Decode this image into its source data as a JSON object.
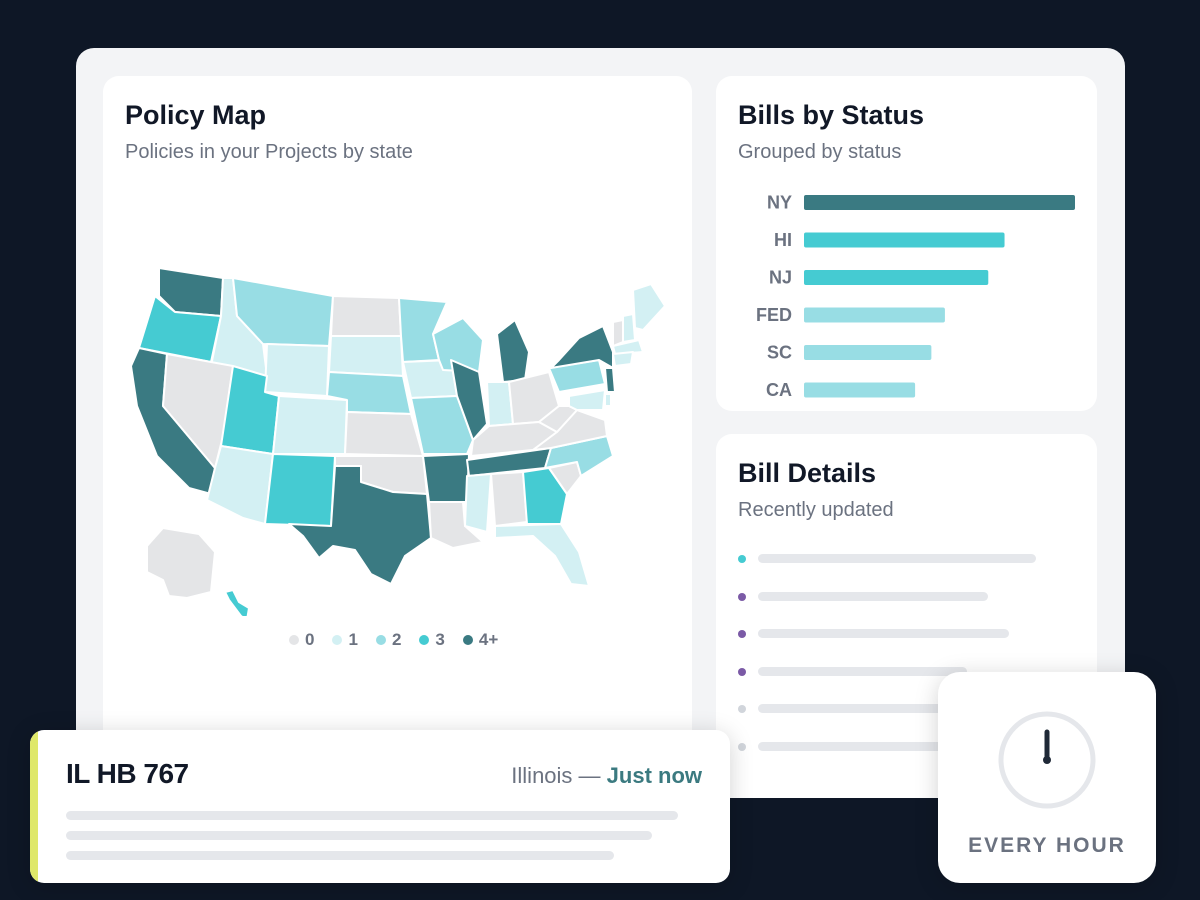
{
  "colors": {
    "level_0": "#e4e5e7",
    "level_1": "#d3f0f3",
    "level_2": "#98dde4",
    "level_3": "#45cbd2",
    "level_4": "#3a7a82",
    "accent_purple": "#7b5aa6",
    "accent_teal": "#45cbd2",
    "accent_gray": "#d1d5db",
    "highlight_yellow": "#dfe86a"
  },
  "policy_map": {
    "title": "Policy Map",
    "subtitle": "Policies in your Projects by state",
    "legend": [
      {
        "label": "0",
        "color": "#e4e5e7"
      },
      {
        "label": "1",
        "color": "#d3f0f3"
      },
      {
        "label": "2",
        "color": "#98dde4"
      },
      {
        "label": "3",
        "color": "#45cbd2"
      },
      {
        "label": "4+",
        "color": "#3a7a82"
      }
    ],
    "state_levels": {
      "WA": 4,
      "OR": 3,
      "CA": 4,
      "ID": 1,
      "NV": 0,
      "MT": 2,
      "WY": 1,
      "UT": 3,
      "AZ": 1,
      "CO": 1,
      "NM": 3,
      "ND": 0,
      "SD": 1,
      "NE": 2,
      "KS": 0,
      "OK": 0,
      "TX": 4,
      "MN": 2,
      "IA": 1,
      "MO": 2,
      "AR": 4,
      "LA": 0,
      "WI": 2,
      "IL": 4,
      "MI": 4,
      "IN": 1,
      "OH": 0,
      "KY": 0,
      "TN": 4,
      "MS": 1,
      "AL": 0,
      "GA": 3,
      "FL": 1,
      "SC": 0,
      "NC": 2,
      "VA": 0,
      "WV": 0,
      "PA": 2,
      "NY": 4,
      "ME": 1,
      "VT": 0,
      "NH": 1,
      "MA": 1,
      "CT": 1,
      "NJ": 4,
      "DE": 1,
      "MD": 1,
      "AK": 0,
      "HI": 3
    }
  },
  "bills_by_status": {
    "title": "Bills by Status",
    "subtitle": "Grouped by status"
  },
  "chart_data": {
    "type": "bar",
    "orientation": "horizontal",
    "categories": [
      "NY",
      "HI",
      "NJ",
      "FED",
      "SC",
      "CA"
    ],
    "values": [
      100,
      74,
      68,
      52,
      47,
      41
    ],
    "bar_colors": [
      "#3a7a82",
      "#45cbd2",
      "#45cbd2",
      "#98dde4",
      "#98dde4",
      "#98dde4"
    ],
    "title": "Bills by Status",
    "subtitle": "Grouped by status",
    "xlabel": "",
    "ylabel": "",
    "grid": false
  },
  "bill_details": {
    "title": "Bill Details",
    "subtitle": "Recently updated",
    "rows": [
      {
        "dot_color": "#45cbd2",
        "line_fraction": 0.8
      },
      {
        "dot_color": "#7b5aa6",
        "line_fraction": 0.66
      },
      {
        "dot_color": "#7b5aa6",
        "line_fraction": 0.72
      },
      {
        "dot_color": "#7b5aa6",
        "line_fraction": 0.6
      },
      {
        "dot_color": "#d1d5db",
        "line_fraction": 0.6
      },
      {
        "dot_color": "#d1d5db",
        "line_fraction": 0.6
      }
    ]
  },
  "notification": {
    "title": "IL HB 767",
    "location": "Illinois — ",
    "time": "Just now"
  },
  "schedule": {
    "label": "EVERY HOUR"
  }
}
